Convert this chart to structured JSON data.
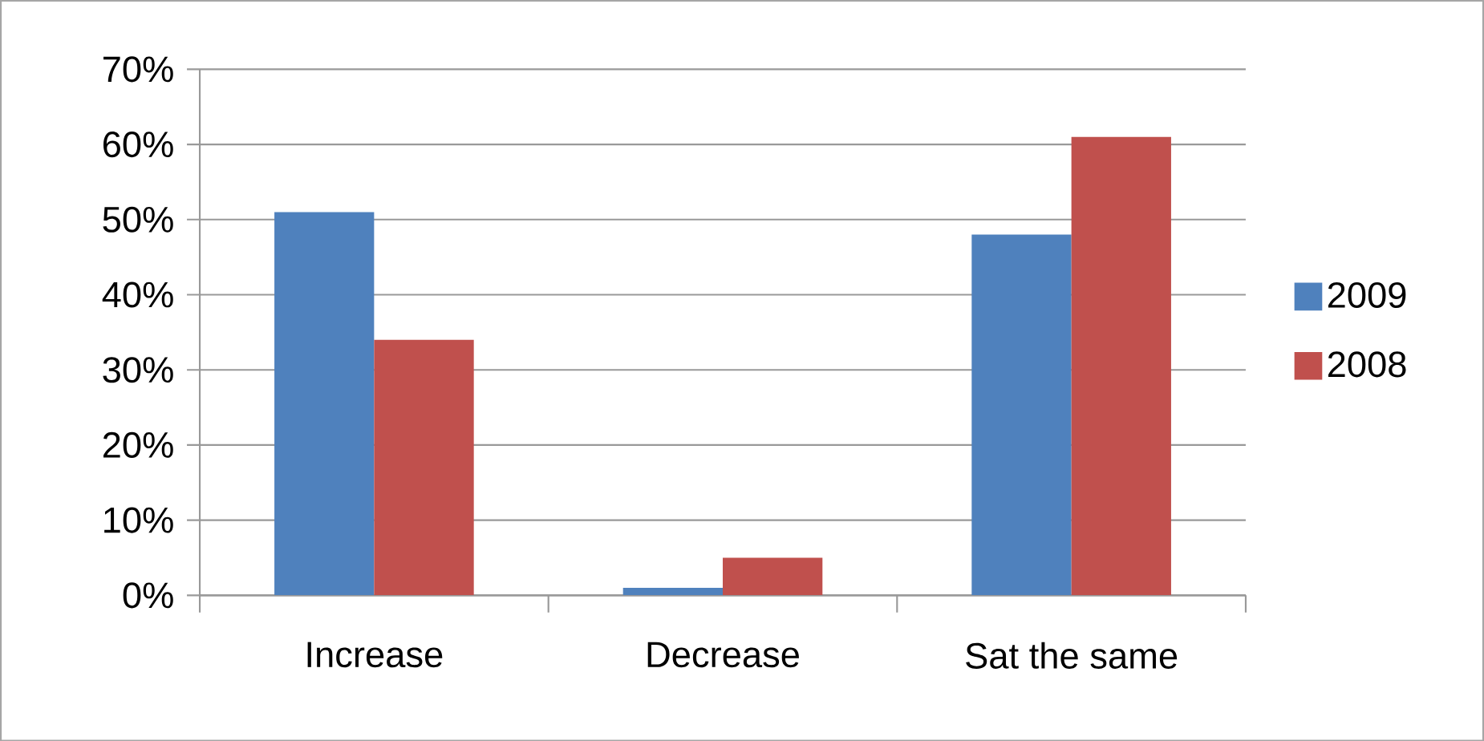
{
  "chart_data": {
    "type": "bar",
    "categories": [
      "Increase",
      "Decrease",
      "Sat the same"
    ],
    "series": [
      {
        "name": "2009",
        "color": "#4f81bd",
        "values": [
          51,
          1,
          48
        ]
      },
      {
        "name": "2008",
        "color": "#c0504d",
        "values": [
          34,
          5,
          61
        ]
      }
    ],
    "ylim": [
      0,
      70
    ],
    "yticks": [
      {
        "value": 0,
        "label": "0%"
      },
      {
        "value": 10,
        "label": "10%"
      },
      {
        "value": 20,
        "label": "20%"
      },
      {
        "value": 30,
        "label": "30%"
      },
      {
        "value": 40,
        "label": "40%"
      },
      {
        "value": 50,
        "label": "50%"
      },
      {
        "value": 60,
        "label": "60%"
      },
      {
        "value": 70,
        "label": "70%"
      }
    ],
    "grid": "y",
    "legend": "right"
  }
}
